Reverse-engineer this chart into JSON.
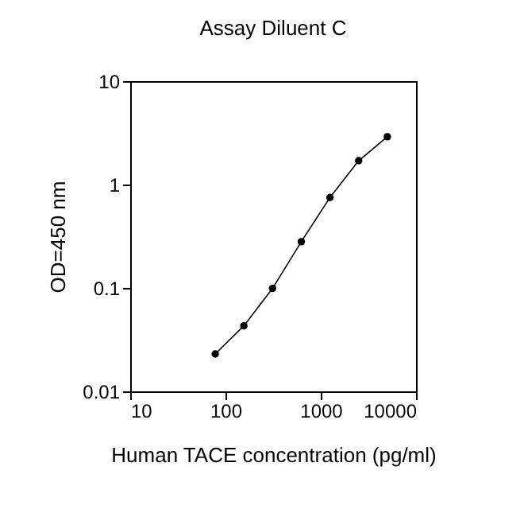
{
  "chart_data": {
    "type": "line",
    "title": "Assay Diluent C",
    "xlabel": "Human TACE concentration (pg/ml)",
    "ylabel": "OD=450 nm",
    "x": [
      78,
      156,
      312,
      625,
      1250,
      2500,
      5000
    ],
    "series": [
      {
        "color": "#000000",
        "values": [
          0.023,
          0.043,
          0.099,
          0.28,
          0.75,
          1.7,
          2.9
        ]
      }
    ],
    "log": "xy",
    "xlim": [
      10,
      10000
    ],
    "xticks": [
      10,
      100,
      1000,
      10000
    ],
    "ylim": [
      0.01,
      10
    ],
    "yticks": [
      0.01,
      0.1,
      1,
      10
    ],
    "marker": "circle",
    "line_style": "solid",
    "grid": false
  }
}
